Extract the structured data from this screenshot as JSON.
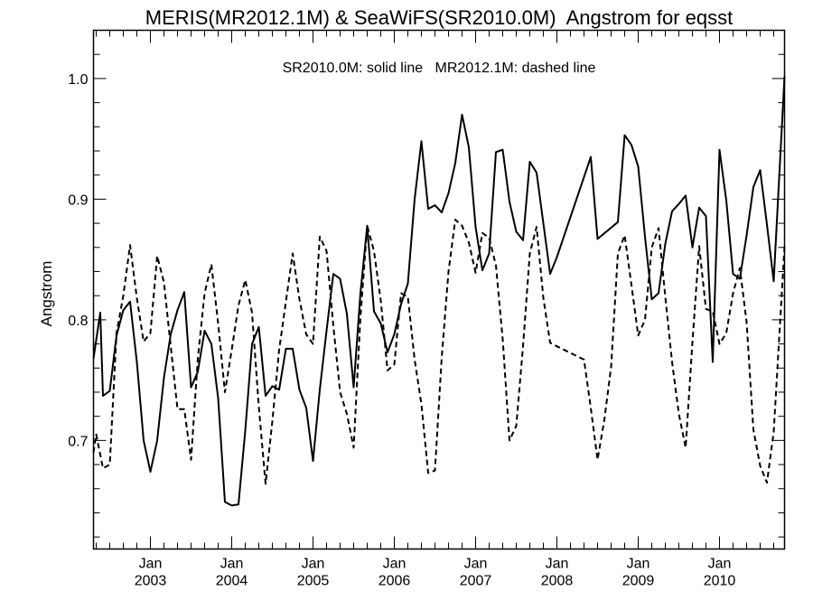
{
  "chart_data": {
    "type": "line",
    "title": "MERIS(MR2012.1M) & SeaWiFS(SR2010.0M)  Angstrom for eqsst",
    "annotation": "SR2010.0M: solid line   MR2012.1M: dashed line",
    "ylabel": "Angstrom",
    "xlabel": "",
    "xlim": [
      2002.3,
      2010.8
    ],
    "ylim": [
      0.61,
      1.04
    ],
    "yticks": [
      0.7,
      0.8,
      0.9,
      1.0
    ],
    "ytick_labels": [
      "0.7",
      "0.8",
      "0.9",
      "1.0"
    ],
    "xticks": [
      {
        "x": 2003,
        "month": "Jan",
        "year": "2003"
      },
      {
        "x": 2004,
        "month": "Jan",
        "year": "2004"
      },
      {
        "x": 2005,
        "month": "Jan",
        "year": "2005"
      },
      {
        "x": 2006,
        "month": "Jan",
        "year": "2006"
      },
      {
        "x": 2007,
        "month": "Jan",
        "year": "2007"
      },
      {
        "x": 2008,
        "month": "Jan",
        "year": "2008"
      },
      {
        "x": 2009,
        "month": "Jan",
        "year": "2009"
      },
      {
        "x": 2010,
        "month": "Jan",
        "year": "2010"
      }
    ],
    "grid": false,
    "series": [
      {
        "name": "SR2010.0M",
        "style": "solid",
        "color": "#000000",
        "x": [
          2002.3,
          2002.383,
          2002.417,
          2002.5,
          2002.583,
          2002.667,
          2002.75,
          2002.833,
          2002.917,
          2003.0,
          2003.083,
          2003.167,
          2003.25,
          2003.333,
          2003.417,
          2003.5,
          2003.583,
          2003.667,
          2003.75,
          2003.833,
          2003.917,
          2004.0,
          2004.083,
          2004.167,
          2004.25,
          2004.333,
          2004.417,
          2004.5,
          2004.583,
          2004.667,
          2004.75,
          2004.833,
          2004.917,
          2005.0,
          2005.083,
          2005.167,
          2005.25,
          2005.333,
          2005.417,
          2005.5,
          2005.583,
          2005.667,
          2005.75,
          2005.833,
          2005.917,
          2006.0,
          2006.083,
          2006.167,
          2006.25,
          2006.333,
          2006.417,
          2006.5,
          2006.583,
          2006.667,
          2006.75,
          2006.833,
          2006.917,
          2007.0,
          2007.083,
          2007.167,
          2007.25,
          2007.333,
          2007.417,
          2007.5,
          2007.583,
          2007.667,
          2007.75,
          2007.833,
          2007.917,
          2008.0,
          2008.417,
          2008.5,
          2008.75,
          2008.833,
          2008.917,
          2009.0,
          2009.083,
          2009.167,
          2009.25,
          2009.333,
          2009.417,
          2009.5,
          2009.583,
          2009.667,
          2009.75,
          2009.833,
          2009.917,
          2010.0,
          2010.083,
          2010.167,
          2010.25,
          2010.333,
          2010.417,
          2010.5,
          2010.583,
          2010.667,
          2010.8
        ],
        "y": [
          0.768,
          0.806,
          0.737,
          0.741,
          0.787,
          0.808,
          0.815,
          0.765,
          0.7,
          0.674,
          0.7,
          0.752,
          0.788,
          0.808,
          0.823,
          0.744,
          0.757,
          0.791,
          0.78,
          0.735,
          0.649,
          0.646,
          0.647,
          0.708,
          0.78,
          0.794,
          0.737,
          0.745,
          0.742,
          0.776,
          0.776,
          0.742,
          0.727,
          0.683,
          0.742,
          0.791,
          0.838,
          0.834,
          0.805,
          0.744,
          0.822,
          0.878,
          0.807,
          0.797,
          0.773,
          0.788,
          0.813,
          0.83,
          0.9,
          0.948,
          0.892,
          0.895,
          0.889,
          0.905,
          0.93,
          0.97,
          0.943,
          0.877,
          0.841,
          0.855,
          0.939,
          0.941,
          0.898,
          0.873,
          0.866,
          0.931,
          0.922,
          0.88,
          0.838,
          0.852,
          0.935,
          0.867,
          0.881,
          0.953,
          0.945,
          0.927,
          0.869,
          0.817,
          0.822,
          0.863,
          0.89,
          0.896,
          0.903,
          0.86,
          0.893,
          0.886,
          0.765,
          0.941,
          0.899,
          0.838,
          0.834,
          0.87,
          0.91,
          0.924,
          0.879,
          0.832,
          1.002
        ]
      },
      {
        "name": "MR2012.1M",
        "style": "dashed",
        "color": "#000000",
        "x": [
          2002.3,
          2002.333,
          2002.417,
          2002.5,
          2002.583,
          2002.667,
          2002.75,
          2002.833,
          2002.917,
          2003.0,
          2003.083,
          2003.167,
          2003.25,
          2003.333,
          2003.417,
          2003.5,
          2003.583,
          2003.667,
          2003.75,
          2003.833,
          2003.917,
          2004.0,
          2004.083,
          2004.167,
          2004.25,
          2004.333,
          2004.417,
          2004.5,
          2004.583,
          2004.667,
          2004.75,
          2004.833,
          2004.917,
          2005.0,
          2005.083,
          2005.167,
          2005.25,
          2005.333,
          2005.417,
          2005.5,
          2005.583,
          2005.667,
          2005.75,
          2005.833,
          2005.917,
          2006.0,
          2006.083,
          2006.167,
          2006.25,
          2006.333,
          2006.417,
          2006.5,
          2006.583,
          2006.667,
          2006.75,
          2006.833,
          2006.917,
          2007.0,
          2007.083,
          2007.167,
          2007.25,
          2007.333,
          2007.417,
          2007.5,
          2007.583,
          2007.667,
          2007.75,
          2007.833,
          2007.917,
          2008.0,
          2008.333,
          2008.417,
          2008.5,
          2008.583,
          2008.667,
          2008.75,
          2008.833,
          2008.917,
          2009.0,
          2009.083,
          2009.167,
          2009.25,
          2009.333,
          2009.417,
          2009.5,
          2009.583,
          2009.667,
          2009.75,
          2009.833,
          2009.917,
          2010.0,
          2010.083,
          2010.167,
          2010.25,
          2010.333,
          2010.417,
          2010.5,
          2010.583,
          2010.667,
          2010.8
        ],
        "y": [
          0.69,
          0.705,
          0.677,
          0.68,
          0.789,
          0.82,
          0.862,
          0.818,
          0.782,
          0.789,
          0.853,
          0.831,
          0.778,
          0.726,
          0.726,
          0.684,
          0.768,
          0.822,
          0.846,
          0.797,
          0.74,
          0.775,
          0.812,
          0.833,
          0.806,
          0.728,
          0.664,
          0.716,
          0.775,
          0.815,
          0.855,
          0.817,
          0.788,
          0.78,
          0.869,
          0.857,
          0.795,
          0.74,
          0.722,
          0.694,
          0.802,
          0.878,
          0.857,
          0.816,
          0.758,
          0.763,
          0.822,
          0.819,
          0.767,
          0.73,
          0.673,
          0.675,
          0.769,
          0.84,
          0.883,
          0.878,
          0.864,
          0.839,
          0.872,
          0.868,
          0.845,
          0.784,
          0.7,
          0.712,
          0.778,
          0.855,
          0.877,
          0.818,
          0.781,
          0.778,
          0.767,
          0.727,
          0.684,
          0.717,
          0.761,
          0.855,
          0.87,
          0.829,
          0.787,
          0.8,
          0.86,
          0.876,
          0.819,
          0.765,
          0.722,
          0.694,
          0.781,
          0.861,
          0.809,
          0.807,
          0.78,
          0.789,
          0.822,
          0.843,
          0.798,
          0.709,
          0.679,
          0.665,
          0.707,
          0.861
        ]
      }
    ]
  }
}
